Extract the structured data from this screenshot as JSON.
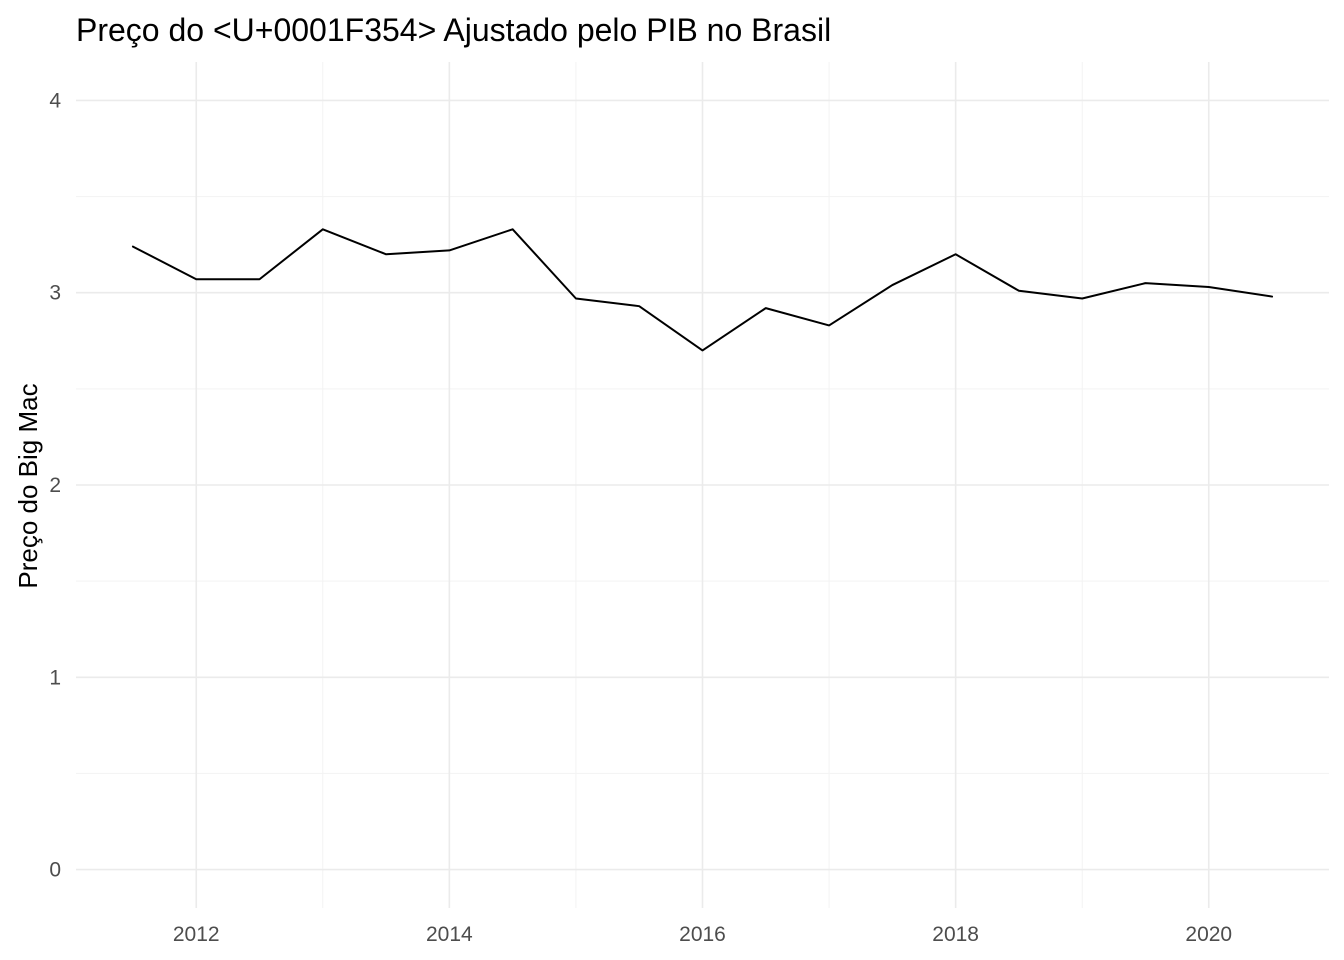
{
  "chart_data": {
    "type": "line",
    "title": "Preço do <U+0001F354> Ajustado pelo PIB no Brasil",
    "xlabel": "",
    "ylabel": "Preço do Big Mac",
    "xlim": [
      2011.05,
      2020.95
    ],
    "ylim": [
      -0.2,
      4.2
    ],
    "x_ticks": [
      2012,
      2014,
      2016,
      2018,
      2020
    ],
    "x_tick_labels": [
      "2012",
      "2014",
      "2016",
      "2018",
      "2020"
    ],
    "x_minor_ticks": [
      2013,
      2015,
      2017,
      2019
    ],
    "y_ticks": [
      0,
      1,
      2,
      3,
      4
    ],
    "y_tick_labels": [
      "0",
      "1",
      "2",
      "3",
      "4"
    ],
    "y_minor_ticks": [
      0.5,
      1.5,
      2.5,
      3.5
    ],
    "grid": true,
    "legend": "none",
    "series": [
      {
        "color": "#000000",
        "x": [
          2011.5,
          2012.0,
          2012.5,
          2013.0,
          2013.5,
          2014.0,
          2014.5,
          2015.0,
          2015.5,
          2016.0,
          2016.5,
          2017.0,
          2017.5,
          2018.0,
          2018.5,
          2019.0,
          2019.5,
          2020.0,
          2020.5
        ],
        "values": [
          3.24,
          3.07,
          3.07,
          3.33,
          3.2,
          3.22,
          3.33,
          2.97,
          2.93,
          2.7,
          2.92,
          2.83,
          3.04,
          3.2,
          3.01,
          2.97,
          3.05,
          3.03,
          2.98
        ]
      }
    ]
  }
}
